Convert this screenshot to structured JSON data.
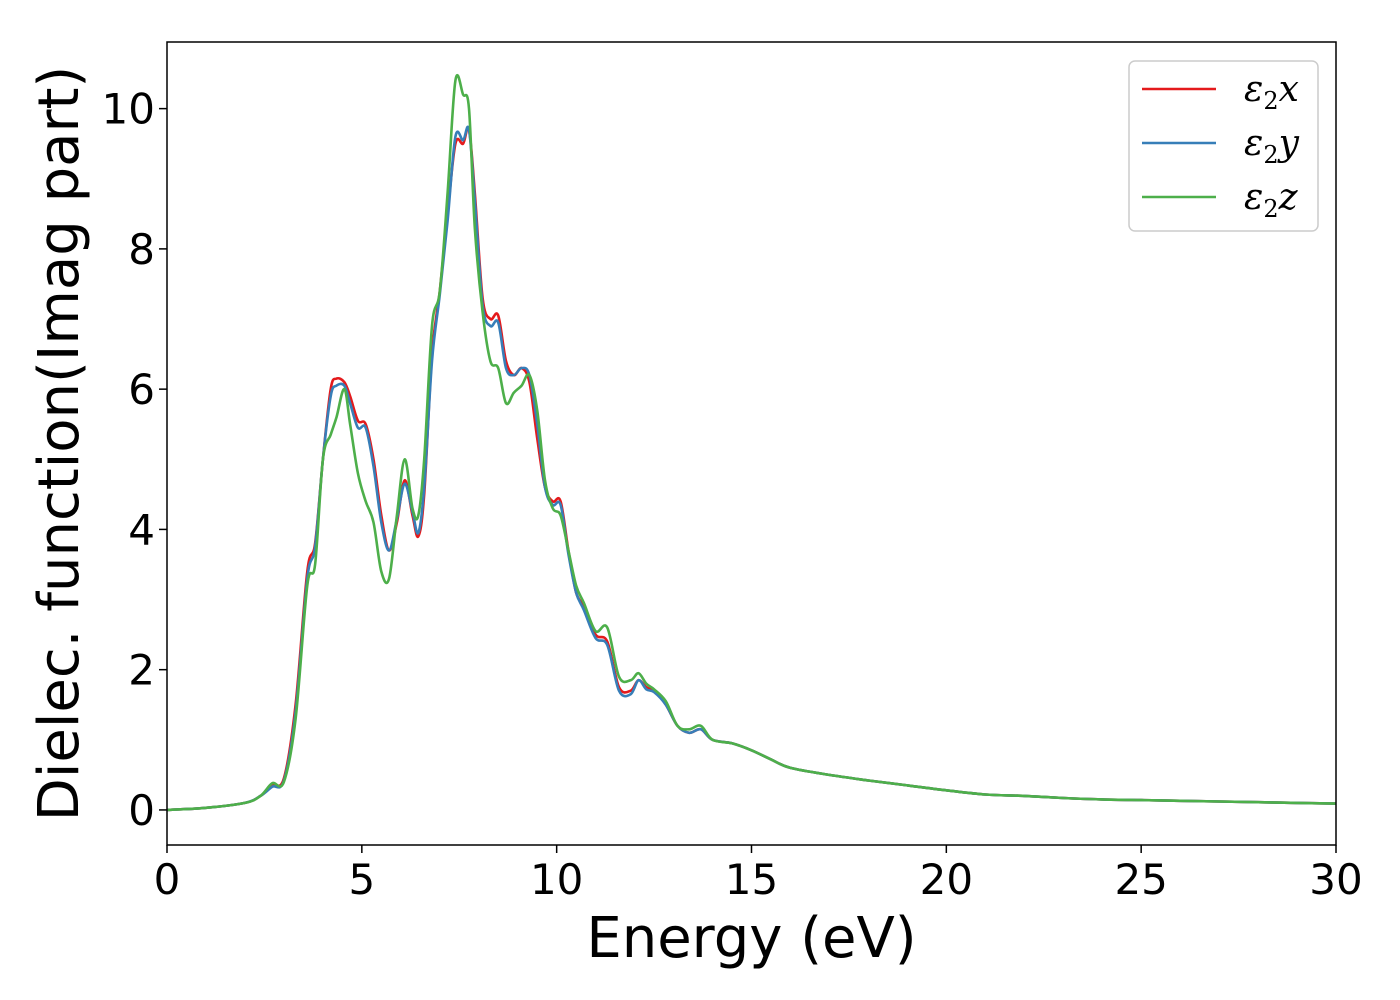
{
  "chart_data": {
    "type": "line",
    "title": "",
    "xlabel": "Energy (eV)",
    "ylabel": "Dielec. function(Imag part)",
    "xlim": [
      0,
      30
    ],
    "ylim": [
      -0.5,
      10.95
    ],
    "xticks": [
      0,
      5,
      10,
      15,
      20,
      25,
      30
    ],
    "yticks": [
      0,
      2,
      4,
      6,
      8,
      10
    ],
    "grid": false,
    "legend_position": "top-right",
    "series": [
      {
        "name": "ε2x",
        "legend_base": "ε",
        "legend_sub": "2",
        "legend_var": "x",
        "color": "#e41a1c",
        "x": [
          0,
          1,
          2,
          2.4,
          2.7,
          3.0,
          3.3,
          3.6,
          3.8,
          4.0,
          4.2,
          4.35,
          4.55,
          4.7,
          4.9,
          5.1,
          5.3,
          5.5,
          5.7,
          5.9,
          6.1,
          6.3,
          6.45,
          6.6,
          6.8,
          7.0,
          7.2,
          7.4,
          7.6,
          7.75,
          7.9,
          8.1,
          8.3,
          8.5,
          8.7,
          8.9,
          9.1,
          9.3,
          9.5,
          9.7,
          9.9,
          10.1,
          10.3,
          10.5,
          10.7,
          11.0,
          11.3,
          11.6,
          11.9,
          12.1,
          12.3,
          12.5,
          12.8,
          13.1,
          13.4,
          13.7,
          14.0,
          14.5,
          15.0,
          15.5,
          16.0,
          17.0,
          18.0,
          19.0,
          20.0,
          21.0,
          22.0,
          23.0,
          24.0,
          25.0,
          26.0,
          27.0,
          28.0,
          29.0,
          30.0
        ],
        "y": [
          0,
          0.03,
          0.1,
          0.2,
          0.35,
          0.45,
          1.5,
          3.4,
          3.8,
          5.0,
          6.0,
          6.15,
          6.1,
          5.9,
          5.55,
          5.5,
          5.0,
          4.2,
          3.7,
          4.1,
          4.7,
          4.2,
          3.9,
          4.5,
          6.5,
          7.4,
          8.5,
          9.5,
          9.5,
          9.7,
          8.8,
          7.3,
          7.0,
          7.05,
          6.4,
          6.2,
          6.3,
          6.1,
          5.3,
          4.6,
          4.4,
          4.4,
          3.7,
          3.1,
          2.9,
          2.5,
          2.4,
          1.75,
          1.7,
          1.85,
          1.75,
          1.7,
          1.5,
          1.2,
          1.1,
          1.15,
          1.0,
          0.95,
          0.85,
          0.72,
          0.6,
          0.5,
          0.42,
          0.35,
          0.28,
          0.22,
          0.2,
          0.17,
          0.15,
          0.14,
          0.13,
          0.12,
          0.11,
          0.1,
          0.09
        ]
      },
      {
        "name": "ε2y",
        "legend_base": "ε",
        "legend_sub": "2",
        "legend_var": "y",
        "color": "#377eb8",
        "x": [
          0,
          1,
          2,
          2.4,
          2.7,
          3.0,
          3.3,
          3.6,
          3.8,
          4.0,
          4.2,
          4.35,
          4.55,
          4.7,
          4.9,
          5.1,
          5.3,
          5.5,
          5.7,
          5.9,
          6.1,
          6.3,
          6.45,
          6.6,
          6.8,
          7.0,
          7.2,
          7.4,
          7.6,
          7.75,
          7.9,
          8.1,
          8.3,
          8.5,
          8.7,
          8.9,
          9.1,
          9.3,
          9.5,
          9.7,
          9.9,
          10.1,
          10.3,
          10.5,
          10.7,
          11.0,
          11.3,
          11.6,
          11.9,
          12.1,
          12.3,
          12.5,
          12.8,
          13.1,
          13.4,
          13.7,
          14.0,
          14.5,
          15.0,
          15.5,
          16.0,
          17.0,
          18.0,
          19.0,
          20.0,
          21.0,
          22.0,
          23.0,
          24.0,
          25.0,
          26.0,
          27.0,
          28.0,
          29.0,
          30.0
        ],
        "y": [
          0,
          0.03,
          0.1,
          0.2,
          0.33,
          0.42,
          1.4,
          3.3,
          3.75,
          5.0,
          5.9,
          6.05,
          6.05,
          5.8,
          5.45,
          5.45,
          4.9,
          4.1,
          3.7,
          4.15,
          4.65,
          4.25,
          3.95,
          4.6,
          6.4,
          7.35,
          8.4,
          9.6,
          9.55,
          9.7,
          8.7,
          7.2,
          6.9,
          6.95,
          6.3,
          6.2,
          6.3,
          6.2,
          5.5,
          4.6,
          4.35,
          4.35,
          3.65,
          3.1,
          2.85,
          2.45,
          2.35,
          1.7,
          1.65,
          1.85,
          1.72,
          1.68,
          1.5,
          1.2,
          1.1,
          1.15,
          1.0,
          0.95,
          0.85,
          0.72,
          0.6,
          0.5,
          0.42,
          0.35,
          0.28,
          0.22,
          0.2,
          0.17,
          0.15,
          0.14,
          0.13,
          0.12,
          0.11,
          0.1,
          0.09
        ]
      },
      {
        "name": "ε2z",
        "legend_base": "ε",
        "legend_sub": "2",
        "legend_var": "z",
        "color": "#4daf4a",
        "x": [
          0,
          1,
          2,
          2.4,
          2.7,
          3.0,
          3.3,
          3.6,
          3.8,
          4.0,
          4.2,
          4.35,
          4.55,
          4.7,
          4.9,
          5.1,
          5.3,
          5.5,
          5.7,
          5.9,
          6.1,
          6.3,
          6.45,
          6.6,
          6.8,
          7.0,
          7.2,
          7.4,
          7.6,
          7.75,
          7.9,
          8.1,
          8.3,
          8.5,
          8.7,
          8.9,
          9.1,
          9.3,
          9.5,
          9.7,
          9.9,
          10.1,
          10.3,
          10.5,
          10.7,
          11.0,
          11.3,
          11.6,
          11.9,
          12.1,
          12.3,
          12.5,
          12.8,
          13.1,
          13.4,
          13.7,
          14.0,
          14.5,
          15.0,
          15.5,
          16.0,
          17.0,
          18.0,
          19.0,
          20.0,
          21.0,
          22.0,
          23.0,
          24.0,
          25.0,
          26.0,
          27.0,
          28.0,
          29.0,
          30.0
        ],
        "y": [
          0,
          0.03,
          0.1,
          0.2,
          0.38,
          0.4,
          1.3,
          3.2,
          3.5,
          5.0,
          5.35,
          5.6,
          6.0,
          5.5,
          4.8,
          4.4,
          4.1,
          3.4,
          3.3,
          4.2,
          5.0,
          4.3,
          4.2,
          5.0,
          6.9,
          7.4,
          8.8,
          10.4,
          10.2,
          10.0,
          8.3,
          7.1,
          6.4,
          6.3,
          5.8,
          5.95,
          6.05,
          6.2,
          5.7,
          4.7,
          4.3,
          4.2,
          3.7,
          3.2,
          2.95,
          2.55,
          2.6,
          1.9,
          1.85,
          1.95,
          1.8,
          1.72,
          1.55,
          1.2,
          1.15,
          1.2,
          1.0,
          0.95,
          0.85,
          0.72,
          0.6,
          0.5,
          0.42,
          0.35,
          0.28,
          0.22,
          0.2,
          0.17,
          0.15,
          0.14,
          0.13,
          0.12,
          0.11,
          0.1,
          0.09
        ]
      }
    ]
  }
}
